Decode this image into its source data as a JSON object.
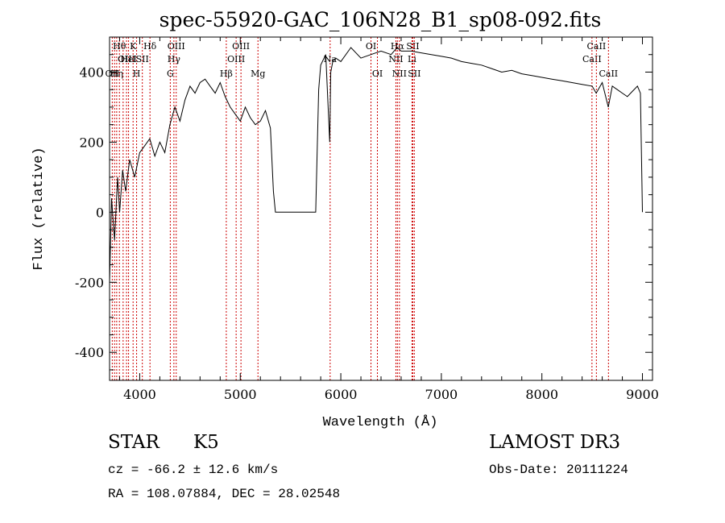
{
  "chart_data": {
    "type": "line",
    "title": "spec-55920-GAC_106N28_B1_sp08-092.fits",
    "xlabel": "Wavelength (Å)",
    "ylabel": "Flux (relative)",
    "xlim": [
      3700,
      9100
    ],
    "ylim": [
      -480,
      500
    ],
    "xticks": [
      4000,
      5000,
      6000,
      7000,
      8000,
      9000
    ],
    "yticks": [
      -400,
      -200,
      0,
      200,
      400
    ],
    "grid": false,
    "line_color": "#000000",
    "line_marker_color": "#cc0000",
    "series": [
      {
        "name": "flux",
        "x": [
          3700,
          3720,
          3750,
          3780,
          3800,
          3830,
          3860,
          3900,
          3950,
          4000,
          4050,
          4100,
          4150,
          4200,
          4250,
          4300,
          4350,
          4400,
          4450,
          4500,
          4550,
          4600,
          4650,
          4700,
          4750,
          4800,
          4850,
          4900,
          4950,
          5000,
          5050,
          5100,
          5150,
          5200,
          5250,
          5300,
          5330,
          5350,
          5400,
          5500,
          5600,
          5700,
          5750,
          5780,
          5800,
          5850,
          5890,
          5900,
          5920,
          5950,
          6000,
          6100,
          6200,
          6300,
          6400,
          6500,
          6560,
          6600,
          6700,
          6800,
          6900,
          7000,
          7100,
          7200,
          7300,
          7400,
          7500,
          7600,
          7700,
          7800,
          7900,
          8000,
          8100,
          8200,
          8300,
          8400,
          8500,
          8540,
          8600,
          8660,
          8700,
          8750,
          8800,
          8850,
          8900,
          8950,
          8980,
          9000
        ],
        "y": [
          -200,
          40,
          -80,
          100,
          0,
          120,
          60,
          150,
          100,
          170,
          190,
          210,
          160,
          200,
          170,
          250,
          300,
          260,
          320,
          360,
          340,
          370,
          380,
          360,
          340,
          370,
          330,
          300,
          280,
          260,
          300,
          270,
          250,
          260,
          290,
          240,
          60,
          0,
          0,
          0,
          0,
          0,
          0,
          350,
          420,
          450,
          200,
          400,
          430,
          440,
          430,
          470,
          440,
          450,
          460,
          450,
          470,
          460,
          460,
          455,
          450,
          445,
          440,
          430,
          425,
          420,
          410,
          400,
          405,
          395,
          390,
          385,
          380,
          375,
          370,
          365,
          360,
          340,
          370,
          300,
          360,
          350,
          340,
          330,
          345,
          360,
          340,
          0
        ]
      }
    ],
    "line_markers": [
      {
        "x": 3727,
        "row": 2,
        "label": "OII"
      },
      {
        "x": 3750,
        "row": 2,
        "label": ""
      },
      {
        "x": 3771,
        "row": 2,
        "label": "Hη"
      },
      {
        "x": 3798,
        "row": 0,
        "label": "Hθ"
      },
      {
        "x": 3835,
        "row": 0,
        "label": ""
      },
      {
        "x": 3869,
        "row": 1,
        "label": "OIII"
      },
      {
        "x": 3889,
        "row": 1,
        "label": "HeI"
      },
      {
        "x": 3934,
        "row": 0,
        "label": "K"
      },
      {
        "x": 3969,
        "row": 2,
        "label": "H"
      },
      {
        "x": 4026,
        "row": 1,
        "label": "SII"
      },
      {
        "x": 4102,
        "row": 0,
        "label": "Hδ"
      },
      {
        "x": 4304,
        "row": 2,
        "label": "G"
      },
      {
        "x": 4340,
        "row": 1,
        "label": "Hγ"
      },
      {
        "x": 4363,
        "row": 0,
        "label": "OIII"
      },
      {
        "x": 4861,
        "row": 2,
        "label": "Hβ"
      },
      {
        "x": 4959,
        "row": 1,
        "label": "OIII"
      },
      {
        "x": 5007,
        "row": 0,
        "label": "OIII"
      },
      {
        "x": 5176,
        "row": 2,
        "label": "Mg"
      },
      {
        "x": 5894,
        "row": 1,
        "label": "Na"
      },
      {
        "x": 6300,
        "row": 0,
        "label": "OI"
      },
      {
        "x": 6364,
        "row": 2,
        "label": "OI"
      },
      {
        "x": 6548,
        "row": 1,
        "label": "NII"
      },
      {
        "x": 6563,
        "row": 0,
        "label": "Hα"
      },
      {
        "x": 6583,
        "row": 2,
        "label": "NII"
      },
      {
        "x": 6708,
        "row": 1,
        "label": "Li"
      },
      {
        "x": 6716,
        "row": 0,
        "label": "SII"
      },
      {
        "x": 6731,
        "row": 2,
        "label": "SII"
      },
      {
        "x": 8498,
        "row": 1,
        "label": "CaII"
      },
      {
        "x": 8542,
        "row": 0,
        "label": "CaII"
      },
      {
        "x": 8662,
        "row": 2,
        "label": "CaII"
      }
    ]
  },
  "info": {
    "object_type": "STAR",
    "subclass": "K5",
    "survey": "LAMOST DR3",
    "cz": "cz = -66.2 ± 12.6 km/s",
    "obs_date": "Obs-Date: 20111224",
    "radec": "RA = 108.07884, DEC =  28.02548"
  }
}
